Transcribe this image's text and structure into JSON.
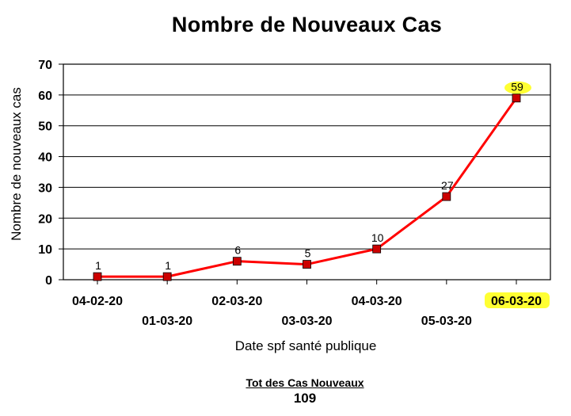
{
  "chart_data": {
    "type": "line",
    "title": "Nombre de Nouveaux Cas",
    "xlabel": "Date spf santé publique",
    "ylabel": "Nombre de nouveaux cas",
    "categories": [
      "04-02-20",
      "01-03-20",
      "02-03-20",
      "03-03-20",
      "04-03-20",
      "05-03-20",
      "06-03-20"
    ],
    "series": [
      {
        "values": [
          1,
          1,
          6,
          5,
          10,
          27,
          59
        ],
        "color": "#ff0000",
        "marker_color": "#cc0000",
        "data_labels": [
          "1",
          "1",
          "6",
          "5",
          "10",
          "27",
          "59"
        ]
      }
    ],
    "ylim": [
      0,
      70
    ],
    "yticks": [
      "0",
      "10",
      "20",
      "30",
      "40",
      "50",
      "60",
      "70"
    ],
    "grid": true,
    "legend": "none",
    "highlight": {
      "category_index": 6,
      "color": "#ffff33"
    }
  },
  "totals": {
    "label": "Tot des Cas Nouveaux",
    "value": "109"
  }
}
